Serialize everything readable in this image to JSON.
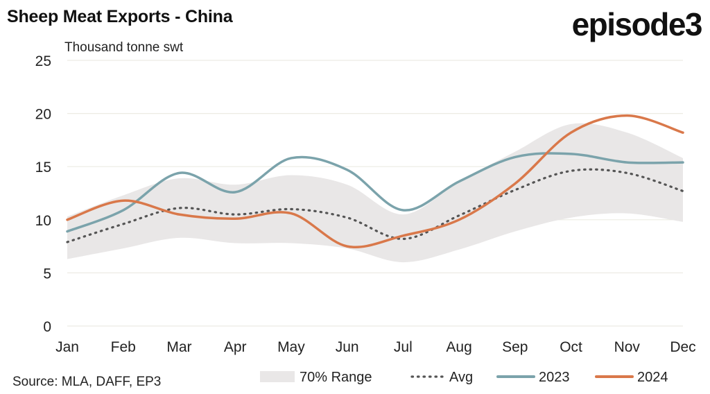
{
  "header": {
    "title": "Sheep Meat Exports - China",
    "brand": "episode3",
    "unit_label": "Thousand tonne swt"
  },
  "footer": {
    "source": "Source: MLA, DAFF, EP3"
  },
  "colors": {
    "range": "#e9e7e7",
    "avg": "#555555",
    "s2023": "#7ba3ab",
    "s2024": "#d9784a",
    "grid": "#ecebe3"
  },
  "chart_data": {
    "type": "line",
    "categories": [
      "Jan",
      "Feb",
      "Mar",
      "Apr",
      "May",
      "Jun",
      "Jul",
      "Aug",
      "Sep",
      "Oct",
      "Nov",
      "Dec"
    ],
    "ylim": [
      0,
      25
    ],
    "yticks": [
      0,
      5,
      10,
      15,
      20,
      25
    ],
    "grid": "horizontal",
    "legend_position": "bottom",
    "range": {
      "name": "70% Range",
      "low": [
        6.3,
        7.3,
        8.3,
        7.8,
        7.8,
        7.3,
        6.0,
        7.2,
        8.9,
        10.2,
        10.6,
        9.8
      ],
      "high": [
        10.3,
        12.3,
        13.9,
        13.3,
        14.2,
        13.3,
        10.5,
        13.6,
        16.4,
        19.0,
        18.2,
        15.8
      ]
    },
    "series": [
      {
        "name": "Avg",
        "style": "dotted",
        "values": [
          7.9,
          9.6,
          11.1,
          10.5,
          11.0,
          10.2,
          8.2,
          10.4,
          12.8,
          14.6,
          14.4,
          12.7
        ]
      },
      {
        "name": "2023",
        "style": "solid",
        "values": [
          8.9,
          10.9,
          14.4,
          12.6,
          15.8,
          14.7,
          10.9,
          13.6,
          15.9,
          16.2,
          15.4,
          15.4
        ]
      },
      {
        "name": "2024",
        "style": "solid",
        "values": [
          10.0,
          11.8,
          10.5,
          10.1,
          10.6,
          7.5,
          8.5,
          10.0,
          13.4,
          18.2,
          19.8,
          18.2
        ]
      }
    ]
  }
}
